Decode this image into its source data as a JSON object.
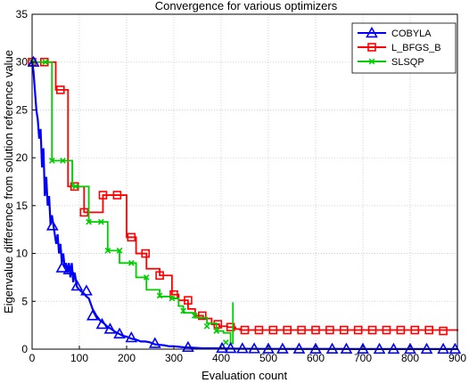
{
  "chart_data": {
    "type": "line",
    "title": "Convergence for various optimizers",
    "xlabel": "Evaluation count",
    "ylabel": "Eigenvalue difference from solution reference value",
    "xlim": [
      0,
      900
    ],
    "ylim": [
      0,
      35
    ],
    "xticks": [
      0,
      100,
      200,
      300,
      400,
      500,
      600,
      700,
      800,
      900
    ],
    "yticks": [
      0,
      5,
      10,
      15,
      20,
      25,
      30,
      35
    ],
    "grid": true,
    "legend_position": "top-right",
    "series": [
      {
        "name": "COBYLA",
        "color": "#0000ff",
        "marker": "triangle",
        "line_style": "solid",
        "x": [
          0,
          3,
          6,
          9,
          12,
          15,
          18,
          21,
          24,
          27,
          30,
          33,
          36,
          39,
          42,
          45,
          48,
          51,
          54,
          57,
          60,
          63,
          66,
          69,
          72,
          75,
          78,
          81,
          84,
          87,
          90,
          95,
          100,
          105,
          110,
          115,
          120,
          128,
          136,
          144,
          152,
          160,
          168,
          176,
          184,
          192,
          200,
          210,
          220,
          230,
          240,
          250,
          260,
          270,
          280,
          290,
          300,
          320,
          340,
          360,
          380,
          400,
          420,
          440,
          460,
          480,
          500,
          550,
          600,
          650,
          700,
          750,
          800,
          850,
          900
        ],
        "y": [
          30,
          29,
          27,
          25,
          24,
          22,
          23,
          19,
          21,
          16,
          18,
          15,
          16,
          13,
          14,
          13,
          12,
          11,
          12,
          10,
          11,
          9,
          10,
          8.5,
          9,
          8,
          9,
          7.5,
          9,
          7,
          8,
          6.5,
          6.2,
          6,
          5.8,
          5.5,
          5.3,
          4.2,
          3.5,
          3,
          2.7,
          2.3,
          2.1,
          1.8,
          1.6,
          1.4,
          1.3,
          1.1,
          1,
          0.8,
          0.8,
          0.7,
          0.5,
          0.45,
          0.4,
          0.3,
          0.3,
          0.2,
          0.15,
          0.1,
          0.1,
          0.08,
          0.06,
          0.05,
          0.04,
          0.03,
          0.03,
          0.02,
          0.02,
          0.02,
          0.01,
          0.01,
          0.01,
          0.01,
          0.01
        ],
        "markers_x": [
          3,
          43,
          63,
          78,
          95,
          115,
          128,
          148,
          165,
          185,
          210,
          260,
          330,
          402,
          420,
          445,
          470,
          500,
          530,
          565,
          600,
          635,
          665,
          700,
          735,
          765,
          800,
          835,
          870,
          895
        ],
        "markers_y": [
          30,
          12.9,
          8.5,
          8.3,
          6.6,
          6.1,
          3.5,
          2.6,
          2.1,
          1.6,
          1.2,
          0.6,
          0.2,
          0.1,
          0.08,
          0.06,
          0.05,
          0.03,
          0.03,
          0.03,
          0.02,
          0.02,
          0.02,
          0.02,
          0.01,
          0.01,
          0.01,
          0.01,
          0.01,
          0.01
        ]
      },
      {
        "name": "L_BFGS_B",
        "color": "#ff0000",
        "marker": "square",
        "line_style": "step",
        "x": [
          0,
          26,
          50,
          76,
          92,
          110,
          128,
          150,
          180,
          200,
          220,
          242,
          270,
          296,
          310,
          330,
          345,
          362,
          380,
          396,
          413,
          430,
          440,
          900
        ],
        "y": [
          30,
          30,
          27.1,
          17,
          17,
          14.3,
          14.3,
          16.1,
          16.1,
          11.7,
          10,
          8.4,
          7.7,
          5.7,
          5.1,
          4.2,
          3.5,
          3.2,
          2.6,
          2.4,
          2.3,
          2.1,
          2.0,
          1.9
        ],
        "markers_x": [
          0,
          26,
          60,
          90,
          110,
          150,
          180,
          210,
          240,
          270,
          300,
          330,
          360,
          393,
          420,
          450,
          480,
          510,
          540,
          570,
          600,
          630,
          660,
          690,
          720,
          750,
          780,
          810,
          840,
          870
        ],
        "markers_y": [
          30,
          30,
          27.1,
          17,
          14.3,
          16.1,
          16.1,
          11.7,
          10,
          7.7,
          5.7,
          5.1,
          3.5,
          2.6,
          2.3,
          2.0,
          2.0,
          2.0,
          2.0,
          2.0,
          2.0,
          2.0,
          2.0,
          2.0,
          2.0,
          2.0,
          2.0,
          2.0,
          2.0,
          1.9
        ]
      },
      {
        "name": "SLSQP",
        "color": "#00cc00",
        "marker": "x",
        "line_style": "step",
        "x": [
          0,
          28,
          42,
          85,
          100,
          120,
          146,
          160,
          185,
          220,
          242,
          270,
          296,
          310,
          320,
          344,
          370,
          390,
          405,
          420,
          425
        ],
        "y": [
          30,
          30,
          19.7,
          17,
          17,
          13.3,
          13.3,
          10.3,
          9.0,
          7.5,
          6.2,
          5.5,
          5.3,
          4.5,
          3.8,
          3.3,
          2.7,
          1.9,
          1.7,
          0.6,
          4.9
        ],
        "markers_x": [
          0,
          28,
          42,
          65,
          92,
          120,
          146,
          160,
          185,
          210,
          242,
          270,
          296,
          320,
          344,
          370,
          390,
          410
        ],
        "markers_y": [
          30,
          30,
          19.7,
          19.7,
          17,
          13.3,
          13.3,
          10.3,
          10.3,
          9.0,
          7.5,
          5.6,
          5.3,
          4.0,
          3.5,
          2.4,
          1.9,
          0.7
        ]
      }
    ]
  }
}
